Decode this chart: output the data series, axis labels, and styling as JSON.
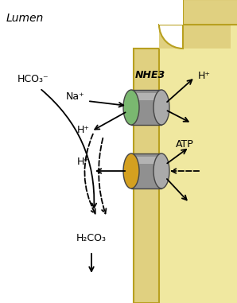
{
  "fig_width": 2.98,
  "fig_height": 3.81,
  "dpi": 100,
  "lumen_label": "Lumen",
  "nhe3_label": "NHE3",
  "nhe3_face_color": "#7ab870",
  "nhe3_body_color": "#909090",
  "atp_label": "ATP",
  "atp_face_color": "#d4a020",
  "atp_body_color": "#909090",
  "membrane_fill": "#e0d080",
  "membrane_edge": "#b8a020",
  "cell_fill": "#f0e8a0",
  "labels": {
    "na_plus": "Na⁺",
    "h_plus_1": "H⁺",
    "h_plus_2": "H⁺",
    "h_plus_3": "H⁺",
    "hco3": "HCO₃⁻",
    "h2co3": "H₂CO₃"
  }
}
